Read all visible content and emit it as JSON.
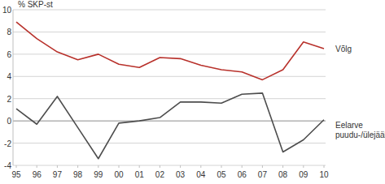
{
  "chart_data": {
    "type": "line",
    "y_label": "% SKP-st",
    "categories": [
      "95",
      "96",
      "97",
      "98",
      "99",
      "00",
      "01",
      "02",
      "03",
      "04",
      "05",
      "06",
      "07",
      "08",
      "09",
      "10"
    ],
    "series": [
      {
        "name": "Võlg",
        "color": "#b8312b",
        "values": [
          8.9,
          7.4,
          6.2,
          5.5,
          6.0,
          5.1,
          4.8,
          5.7,
          5.6,
          5.0,
          4.6,
          4.4,
          3.7,
          4.6,
          7.1,
          6.5
        ]
      },
      {
        "name": "Eelarve puudu-/ülejääk",
        "color": "#4d4d4d",
        "values": [
          1.1,
          -0.3,
          2.2,
          -0.6,
          -3.4,
          -0.2,
          0.0,
          0.3,
          1.7,
          1.7,
          1.6,
          2.4,
          2.5,
          -2.8,
          -1.7,
          0.1
        ]
      }
    ],
    "ylim": [
      -4,
      10
    ],
    "yticks": [
      -4,
      -2,
      0,
      2,
      4,
      6,
      8,
      10
    ],
    "grid": true,
    "legend": "right"
  }
}
